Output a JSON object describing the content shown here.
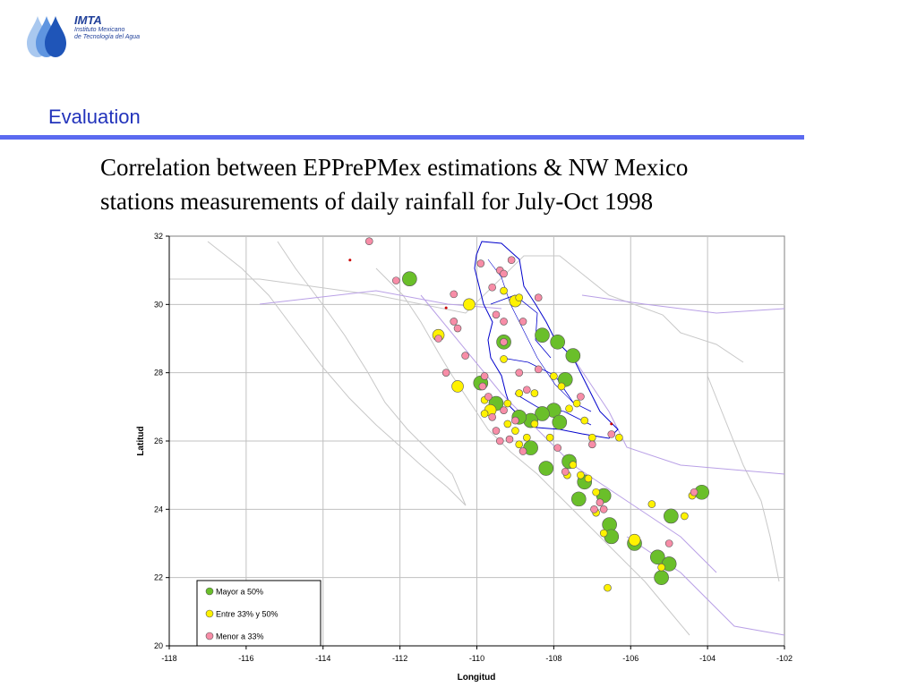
{
  "logo": {
    "brand": "IMTA",
    "line1": "Instituto Mexicano",
    "line2": "de Tecnología del Agua"
  },
  "slide": {
    "section_title": "Evaluation",
    "subtitle_line1": "Correlation between EPPrePMex estimations & NW Mexico",
    "subtitle_line2": "stations measurements of daily rainfall for July-Oct 1998"
  },
  "colors": {
    "title": "#2233bb",
    "rule": "#5b6af0",
    "green": "#6abf2a",
    "yellow": "#fff200",
    "pink": "#f78da7",
    "border_line": "#c8c8c8",
    "region_line": "#b9a0e6",
    "basin_line": "#0000cc",
    "tiny_red": "#cc0000"
  },
  "chart_data": {
    "type": "scatter",
    "title": "",
    "xlabel": "Longitud",
    "ylabel": "Latitud",
    "xlim": [
      -118,
      -102
    ],
    "ylim": [
      20,
      32
    ],
    "xticks": [
      -118,
      -116,
      -114,
      -112,
      -110,
      -108,
      -106,
      -104,
      -102
    ],
    "yticks": [
      20,
      22,
      24,
      26,
      28,
      30,
      32
    ],
    "grid": true,
    "legend": "bottom-left",
    "series": [
      {
        "name": "Mayor a 50%",
        "color": "green",
        "points": [
          [
            -111.75,
            30.75,
            "L"
          ],
          [
            -109.3,
            28.9,
            "L"
          ],
          [
            -107.9,
            28.9,
            "L"
          ],
          [
            -108.3,
            29.1,
            "L"
          ],
          [
            -107.5,
            28.5,
            "L"
          ],
          [
            -107.7,
            27.8,
            "L"
          ],
          [
            -109.9,
            27.7,
            "L"
          ],
          [
            -109.5,
            27.1,
            "L"
          ],
          [
            -108.0,
            26.9,
            "L"
          ],
          [
            -108.3,
            26.8,
            "L"
          ],
          [
            -108.6,
            26.6,
            "L"
          ],
          [
            -108.9,
            26.7,
            "L"
          ],
          [
            -107.85,
            26.55,
            "L"
          ],
          [
            -108.6,
            25.8,
            "L"
          ],
          [
            -107.6,
            25.4,
            "L"
          ],
          [
            -108.2,
            25.2,
            "L"
          ],
          [
            -107.2,
            24.8,
            "L"
          ],
          [
            -106.7,
            24.4,
            "L"
          ],
          [
            -107.35,
            24.3,
            "L"
          ],
          [
            -106.55,
            23.55,
            "L"
          ],
          [
            -106.5,
            23.2,
            "L"
          ],
          [
            -105.9,
            23.0,
            "L"
          ],
          [
            -105.3,
            22.6,
            "L"
          ],
          [
            -105.0,
            22.4,
            "L"
          ],
          [
            -105.2,
            22.0,
            "L"
          ],
          [
            -104.95,
            23.8,
            "L"
          ],
          [
            -104.15,
            24.5,
            "L"
          ]
        ]
      },
      {
        "name": "Entre 33% y 50%",
        "color": "yellow",
        "points": [
          [
            -111.0,
            29.1,
            "M"
          ],
          [
            -110.2,
            30.0,
            "M"
          ],
          [
            -109.3,
            30.4,
            "S"
          ],
          [
            -109.0,
            30.1,
            "M"
          ],
          [
            -108.9,
            30.2,
            "S"
          ],
          [
            -109.3,
            28.4,
            "S"
          ],
          [
            -110.5,
            27.6,
            "M"
          ],
          [
            -109.8,
            27.2,
            "S"
          ],
          [
            -109.65,
            26.9,
            "M"
          ],
          [
            -109.2,
            27.1,
            "S"
          ],
          [
            -108.9,
            27.4,
            "S"
          ],
          [
            -108.5,
            27.4,
            "S"
          ],
          [
            -108.0,
            27.9,
            "S"
          ],
          [
            -107.8,
            27.6,
            "S"
          ],
          [
            -107.4,
            27.1,
            "S"
          ],
          [
            -107.6,
            26.95,
            "S"
          ],
          [
            -107.2,
            26.6,
            "S"
          ],
          [
            -107.0,
            26.1,
            "S"
          ],
          [
            -106.3,
            26.1,
            "S"
          ],
          [
            -108.7,
            26.1,
            "S"
          ],
          [
            -108.5,
            26.5,
            "S"
          ],
          [
            -109.0,
            26.3,
            "S"
          ],
          [
            -108.1,
            26.1,
            "S"
          ],
          [
            -107.5,
            25.3,
            "S"
          ],
          [
            -107.3,
            25.0,
            "S"
          ],
          [
            -107.65,
            25.0,
            "S"
          ],
          [
            -107.1,
            24.9,
            "S"
          ],
          [
            -106.9,
            24.5,
            "S"
          ],
          [
            -106.9,
            23.9,
            "S"
          ],
          [
            -106.7,
            23.3,
            "S"
          ],
          [
            -105.9,
            23.1,
            "M"
          ],
          [
            -105.45,
            24.15,
            "S"
          ],
          [
            -104.6,
            23.8,
            "S"
          ],
          [
            -104.4,
            24.4,
            "S"
          ],
          [
            -105.2,
            22.3,
            "S"
          ],
          [
            -106.6,
            21.7,
            "S"
          ],
          [
            -108.9,
            25.9,
            "S"
          ],
          [
            -109.2,
            26.5,
            "S"
          ],
          [
            -109.8,
            26.8,
            "S"
          ]
        ]
      },
      {
        "name": "Menor a 33%",
        "color": "pink",
        "points": [
          [
            -112.8,
            31.85,
            "S"
          ],
          [
            -113.3,
            31.3,
            "T"
          ],
          [
            -112.1,
            30.7,
            "S"
          ],
          [
            -110.6,
            30.3,
            "S"
          ],
          [
            -110.8,
            29.9,
            "T"
          ],
          [
            -110.6,
            29.5,
            "S"
          ],
          [
            -110.5,
            29.3,
            "S"
          ],
          [
            -111.0,
            29.0,
            "S"
          ],
          [
            -109.9,
            31.2,
            "S"
          ],
          [
            -109.4,
            31.0,
            "S"
          ],
          [
            -109.1,
            31.3,
            "S"
          ],
          [
            -109.3,
            30.9,
            "S"
          ],
          [
            -109.6,
            30.5,
            "S"
          ],
          [
            -110.3,
            28.5,
            "S"
          ],
          [
            -110.8,
            28.0,
            "S"
          ],
          [
            -109.8,
            27.9,
            "S"
          ],
          [
            -109.85,
            27.6,
            "S"
          ],
          [
            -109.7,
            27.3,
            "S"
          ],
          [
            -109.3,
            26.9,
            "S"
          ],
          [
            -109.0,
            26.6,
            "S"
          ],
          [
            -109.5,
            26.3,
            "S"
          ],
          [
            -109.15,
            26.05,
            "S"
          ],
          [
            -109.4,
            26.0,
            "S"
          ],
          [
            -108.8,
            25.7,
            "S"
          ],
          [
            -107.9,
            25.8,
            "S"
          ],
          [
            -107.7,
            25.1,
            "S"
          ],
          [
            -106.95,
            24.0,
            "S"
          ],
          [
            -106.7,
            24.0,
            "S"
          ],
          [
            -106.8,
            24.2,
            "S"
          ],
          [
            -106.5,
            26.2,
            "S"
          ],
          [
            -106.5,
            26.5,
            "T"
          ],
          [
            -107.3,
            27.3,
            "S"
          ],
          [
            -108.7,
            27.5,
            "S"
          ],
          [
            -108.9,
            28.0,
            "S"
          ],
          [
            -108.4,
            28.1,
            "S"
          ],
          [
            -109.3,
            29.5,
            "S"
          ],
          [
            -109.5,
            29.7,
            "S"
          ],
          [
            -108.8,
            29.5,
            "S"
          ],
          [
            -108.4,
            30.2,
            "S"
          ],
          [
            -104.35,
            24.5,
            "S"
          ],
          [
            -105.0,
            23.0,
            "S"
          ],
          [
            -107.0,
            25.9,
            "S"
          ],
          [
            -109.3,
            28.9,
            "S"
          ],
          [
            -109.6,
            26.7,
            "S"
          ]
        ]
      }
    ]
  }
}
